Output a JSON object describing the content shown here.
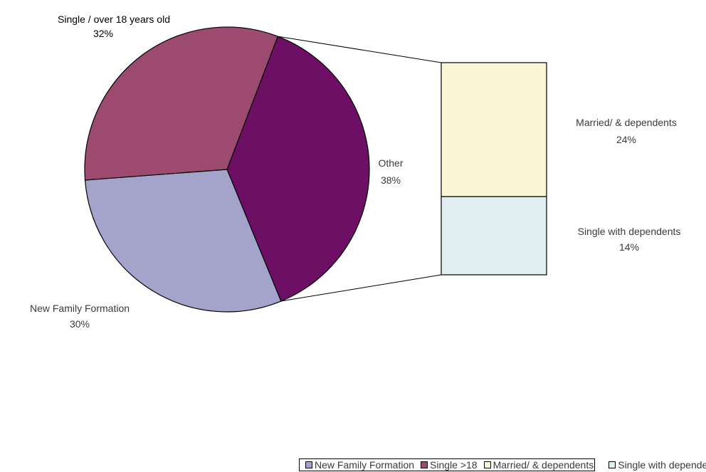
{
  "chart_data": {
    "type": "pie",
    "title": "",
    "slices": [
      {
        "label_line1": "Single / over 18 years old",
        "value_label": "32%",
        "value": 32,
        "color": "#9c4a70"
      },
      {
        "label_line1": "Other",
        "value_label": "38%",
        "value": 38,
        "color": "#6e0f66"
      },
      {
        "label_line1": "New Family Formation",
        "value_label": "30%",
        "value": 30,
        "color": "#a3a3cc"
      }
    ],
    "breakdown": {
      "of": "Other",
      "segments": [
        {
          "label_line1": "Married/ & dependents",
          "value_label": "24%",
          "value": 24,
          "color": "#fbf7d4"
        },
        {
          "label_line1": "Single with dependents",
          "value_label": "14%",
          "value": 14,
          "color": "#e2eff2"
        }
      ]
    },
    "legend": {
      "placement": "bottom",
      "entries": [
        {
          "label": "New Family Formation",
          "color": "#a3a3cc"
        },
        {
          "label": "Single >18",
          "color": "#9c4a70"
        },
        {
          "label": "Married/ & dependents",
          "color": "#fbf7d4"
        },
        {
          "label": "Single with dependents",
          "color": "#e2eff2"
        }
      ]
    }
  }
}
